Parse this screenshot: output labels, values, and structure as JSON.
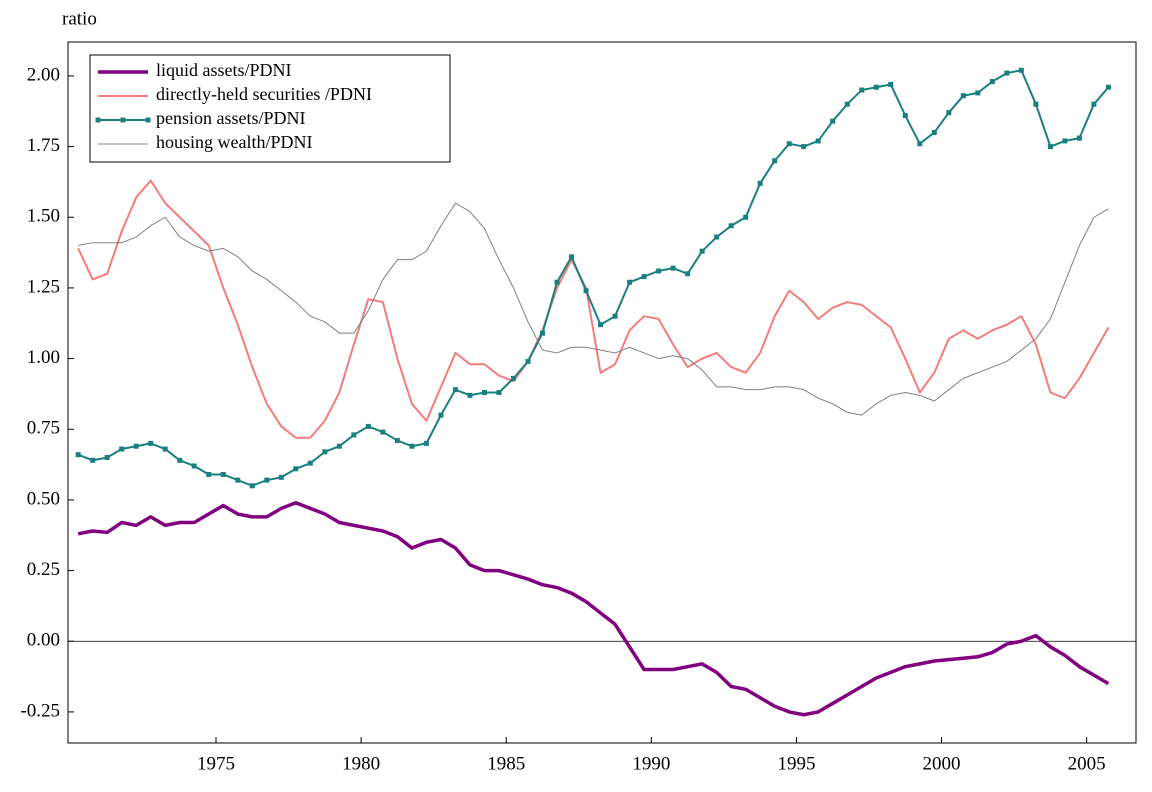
{
  "chart_data": {
    "type": "line",
    "ylabel": "ratio",
    "x": [
      1970.25,
      1970.75,
      1971.25,
      1971.75,
      1972.25,
      1972.75,
      1973.25,
      1973.75,
      1974.25,
      1974.75,
      1975.25,
      1975.75,
      1976.25,
      1976.75,
      1977.25,
      1977.75,
      1978.25,
      1978.75,
      1979.25,
      1979.75,
      1980.25,
      1980.75,
      1981.25,
      1981.75,
      1982.25,
      1982.75,
      1983.25,
      1983.75,
      1984.25,
      1984.75,
      1985.25,
      1985.75,
      1986.25,
      1986.75,
      1987.25,
      1987.75,
      1988.25,
      1988.75,
      1989.25,
      1989.75,
      1990.25,
      1990.75,
      1991.25,
      1991.75,
      1992.25,
      1992.75,
      1993.25,
      1993.75,
      1994.25,
      1994.75,
      1995.25,
      1995.75,
      1996.25,
      1996.75,
      1997.25,
      1997.75,
      1998.25,
      1998.75,
      1999.25,
      1999.75,
      2000.25,
      2000.75,
      2001.25,
      2001.75,
      2002.25,
      2002.75,
      2003.25,
      2003.75,
      2004.25,
      2004.75,
      2005.25,
      2005.75
    ],
    "series": [
      {
        "name": "liquid assets/PDNI",
        "color": "#800080",
        "width": 3.5,
        "values": [
          0.38,
          0.39,
          0.385,
          0.42,
          0.41,
          0.44,
          0.41,
          0.42,
          0.42,
          0.45,
          0.48,
          0.45,
          0.44,
          0.44,
          0.47,
          0.49,
          0.47,
          0.45,
          0.42,
          0.41,
          0.4,
          0.39,
          0.37,
          0.33,
          0.35,
          0.36,
          0.33,
          0.27,
          0.25,
          0.25,
          0.235,
          0.22,
          0.2,
          0.19,
          0.17,
          0.14,
          0.1,
          0.06,
          -0.02,
          -0.1,
          -0.1,
          -0.1,
          -0.09,
          -0.08,
          -0.11,
          -0.16,
          -0.17,
          -0.2,
          -0.23,
          -0.25,
          -0.26,
          -0.25,
          -0.22,
          -0.19,
          -0.16,
          -0.13,
          -0.11,
          -0.09,
          -0.08,
          -0.07,
          -0.065,
          -0.06,
          -0.055,
          -0.04,
          -0.01,
          0.0,
          0.02,
          -0.02,
          -0.05,
          -0.09,
          -0.12,
          -0.15
        ]
      },
      {
        "name": "directly-held securities /PDNI",
        "color": "#f47c7c",
        "width": 2,
        "values": [
          1.39,
          1.28,
          1.3,
          1.45,
          1.57,
          1.63,
          1.55,
          1.5,
          1.45,
          1.4,
          1.25,
          1.12,
          0.97,
          0.84,
          0.76,
          0.72,
          0.72,
          0.78,
          0.88,
          1.05,
          1.21,
          1.2,
          1.0,
          0.84,
          0.78,
          0.9,
          1.02,
          0.98,
          0.98,
          0.94,
          0.92,
          0.99,
          1.1,
          1.25,
          1.35,
          1.25,
          0.95,
          0.98,
          1.1,
          1.15,
          1.14,
          1.05,
          0.97,
          1.0,
          1.02,
          0.97,
          0.95,
          1.02,
          1.15,
          1.24,
          1.2,
          1.14,
          1.18,
          1.2,
          1.19,
          1.15,
          1.11,
          1.0,
          0.88,
          0.95,
          1.07,
          1.1,
          1.07,
          1.1,
          1.12,
          1.15,
          1.05,
          0.88,
          0.86,
          0.93,
          1.02,
          1.11
        ]
      },
      {
        "name": "pension assets/PDNI",
        "color": "#1a7f7f",
        "width": 2,
        "marker": "square",
        "values": [
          0.66,
          0.64,
          0.65,
          0.68,
          0.69,
          0.7,
          0.68,
          0.64,
          0.62,
          0.59,
          0.59,
          0.57,
          0.55,
          0.57,
          0.58,
          0.61,
          0.63,
          0.67,
          0.69,
          0.73,
          0.76,
          0.74,
          0.71,
          0.69,
          0.7,
          0.8,
          0.89,
          0.87,
          0.88,
          0.88,
          0.93,
          0.99,
          1.09,
          1.27,
          1.36,
          1.24,
          1.12,
          1.15,
          1.27,
          1.29,
          1.31,
          1.32,
          1.3,
          1.38,
          1.43,
          1.47,
          1.5,
          1.62,
          1.7,
          1.76,
          1.75,
          1.77,
          1.84,
          1.9,
          1.95,
          1.96,
          1.97,
          1.86,
          1.76,
          1.8,
          1.87,
          1.93,
          1.94,
          1.98,
          2.01,
          2.02,
          1.9,
          1.75,
          1.77,
          1.78,
          1.9,
          1.96
        ]
      },
      {
        "name": "housing wealth/PDNI",
        "color": "#808080",
        "width": 1,
        "values": [
          1.4,
          1.41,
          1.41,
          1.41,
          1.43,
          1.47,
          1.5,
          1.43,
          1.4,
          1.38,
          1.39,
          1.36,
          1.31,
          1.28,
          1.24,
          1.2,
          1.15,
          1.13,
          1.09,
          1.09,
          1.17,
          1.28,
          1.35,
          1.35,
          1.38,
          1.47,
          1.55,
          1.52,
          1.46,
          1.35,
          1.25,
          1.13,
          1.03,
          1.02,
          1.04,
          1.04,
          1.03,
          1.02,
          1.04,
          1.02,
          1.0,
          1.01,
          1.0,
          0.96,
          0.9,
          0.9,
          0.89,
          0.89,
          0.9,
          0.9,
          0.89,
          0.86,
          0.84,
          0.81,
          0.8,
          0.84,
          0.87,
          0.88,
          0.87,
          0.85,
          0.89,
          0.93,
          0.95,
          0.97,
          0.99,
          1.03,
          1.07,
          1.14,
          1.27,
          1.4,
          1.5,
          1.53
        ]
      }
    ],
    "xlim": [
      1969.9,
      2006.7
    ],
    "xticks": [
      1975,
      1980,
      1985,
      1990,
      1995,
      2000,
      2005
    ],
    "ylim": [
      -0.36,
      2.12
    ],
    "yticks": [
      -0.25,
      {
        "value": 0,
        "label": "0.00"
      },
      0.25,
      {
        "value": 0.5,
        "label": "0.50"
      },
      0.75,
      {
        "value": 1,
        "label": "1.00"
      },
      1.25,
      {
        "value": 1.5,
        "label": "1.50"
      },
      1.75,
      {
        "value": 2,
        "label": "2.00"
      }
    ],
    "zero_line": true,
    "legend": "upper left"
  }
}
